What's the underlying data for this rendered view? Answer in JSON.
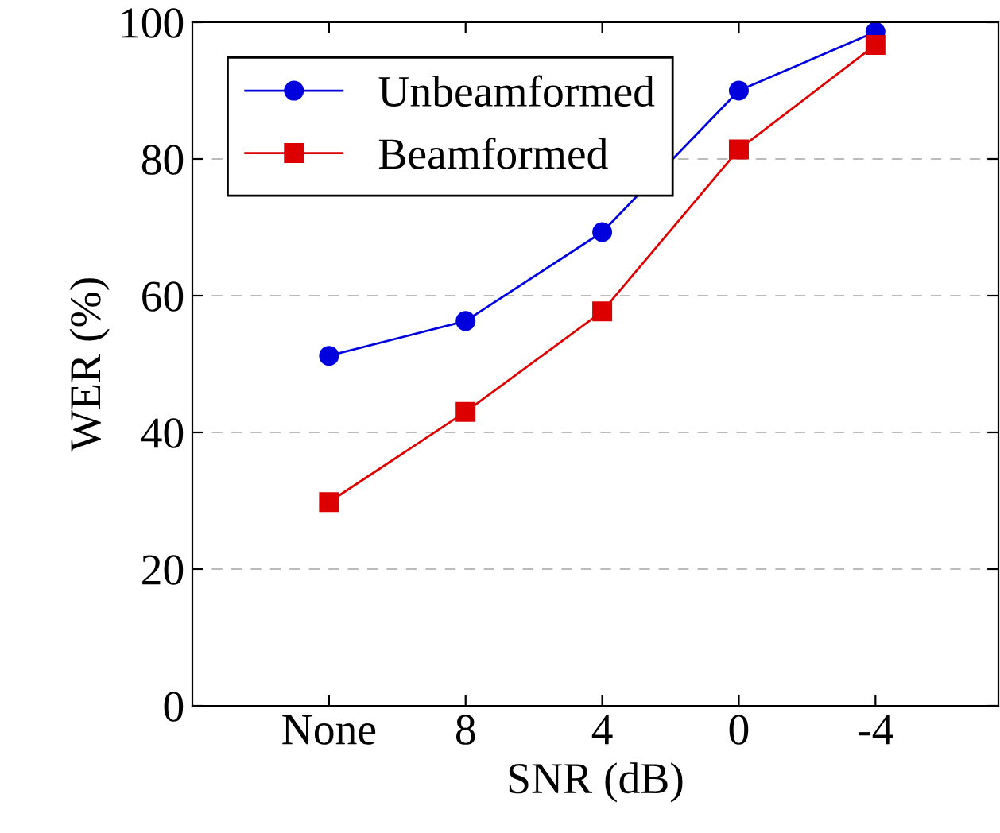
{
  "chart_data": {
    "type": "line",
    "xlabel": "SNR (dB)",
    "ylabel": "WER (%)",
    "categories": [
      "None",
      "8",
      "4",
      "0",
      "-4"
    ],
    "series": [
      {
        "name": "Unbeamformed",
        "color": "#0000dd",
        "marker": "circle",
        "values": [
          51.2,
          56.3,
          69.3,
          90.0,
          98.6
        ]
      },
      {
        "name": "Beamformed",
        "color": "#dd0000",
        "marker": "square",
        "values": [
          29.8,
          43.0,
          57.7,
          81.4,
          96.7
        ]
      }
    ],
    "ylim": [
      0,
      100
    ],
    "yticks": [
      0,
      20,
      40,
      60,
      80,
      100
    ],
    "grid": "y",
    "legend": "top left",
    "line_style": "solid"
  }
}
